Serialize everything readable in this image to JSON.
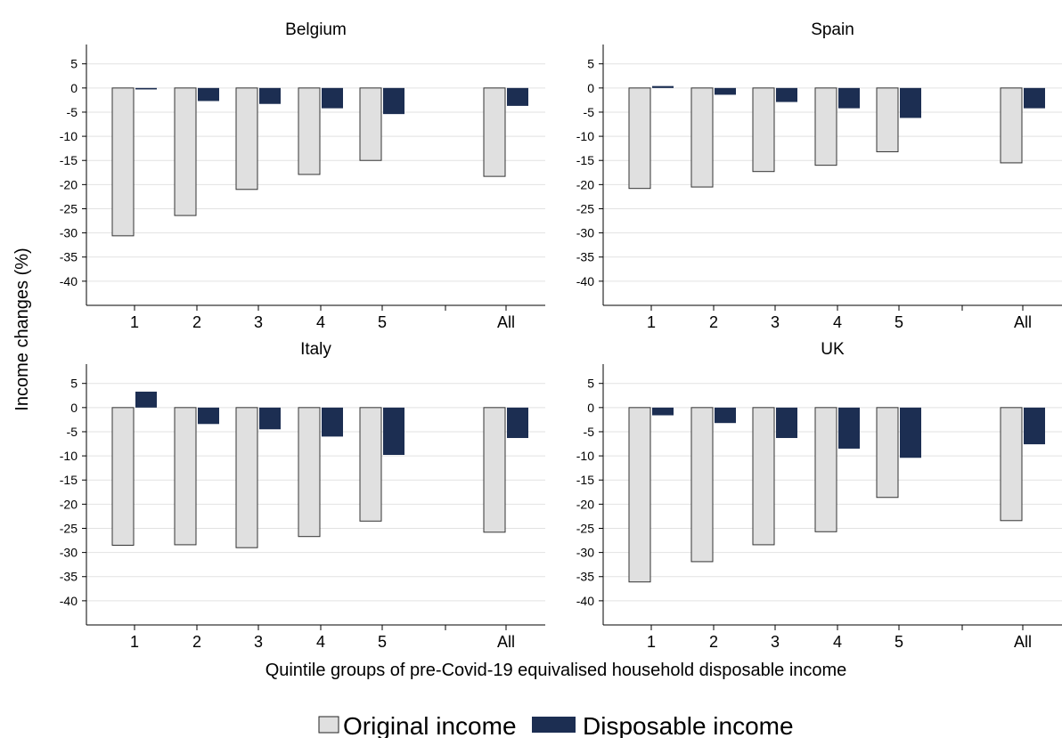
{
  "chart_data": {
    "type": "bar",
    "xlabel": "Quintile groups of pre-Covid-19 equivalised household disposable income",
    "ylabel": "Income changes (%)",
    "categories": [
      "1",
      "2",
      "3",
      "4",
      "5",
      "All"
    ],
    "ylim": [
      -45,
      9
    ],
    "yticks": [
      5,
      0,
      -5,
      -10,
      -15,
      -20,
      -25,
      -30,
      -35,
      -40
    ],
    "grid": true,
    "legend_position": "bottom",
    "colors": {
      "original": "#e0e0e0",
      "disposable": "#1c2e52",
      "grid": "#e2e2e2"
    },
    "series_names": [
      "Original income",
      "Disposable income"
    ],
    "panels": [
      {
        "title": "Belgium",
        "series": [
          {
            "name": "Original income",
            "values": [
              -30.6,
              -26.4,
              -21.0,
              -17.9,
              -15.0,
              -18.3
            ]
          },
          {
            "name": "Disposable income",
            "values": [
              -0.3,
              -2.7,
              -3.3,
              -4.2,
              -5.4,
              -3.7
            ]
          }
        ]
      },
      {
        "title": "Spain",
        "series": [
          {
            "name": "Original income",
            "values": [
              -20.8,
              -20.5,
              -17.3,
              -16.0,
              -13.2,
              -15.5
            ]
          },
          {
            "name": "Disposable income",
            "values": [
              0.4,
              -1.4,
              -2.9,
              -4.2,
              -6.2,
              -4.2
            ]
          }
        ]
      },
      {
        "title": "Italy",
        "series": [
          {
            "name": "Original income",
            "values": [
              -28.5,
              -28.4,
              -29.0,
              -26.7,
              -23.5,
              -25.8
            ]
          },
          {
            "name": "Disposable income",
            "values": [
              3.3,
              -3.4,
              -4.5,
              -6.0,
              -9.8,
              -6.3
            ]
          }
        ]
      },
      {
        "title": "UK",
        "series": [
          {
            "name": "Original income",
            "values": [
              -36.1,
              -31.9,
              -28.4,
              -25.7,
              -18.6,
              -23.4
            ]
          },
          {
            "name": "Disposable income",
            "values": [
              -1.6,
              -3.2,
              -6.3,
              -8.5,
              -10.4,
              -7.6
            ]
          }
        ]
      }
    ]
  }
}
